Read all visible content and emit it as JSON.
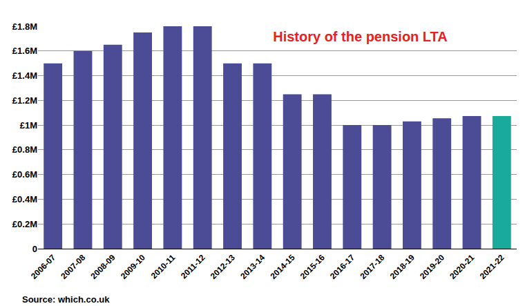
{
  "chart_data": {
    "type": "bar",
    "title": "History of the pension LTA",
    "categories": [
      "2006-07",
      "2007-08",
      "2008-09",
      "2009-10",
      "2010-11",
      "2011-12",
      "2012-13",
      "2013-14",
      "2014-15",
      "2015-16",
      "2016-17",
      "2017-18",
      "2018-19",
      "2019-20",
      "2020-21",
      "2021-22"
    ],
    "values": [
      1.5,
      1.6,
      1.65,
      1.75,
      1.8,
      1.8,
      1.5,
      1.5,
      1.25,
      1.25,
      1.0,
      1.0,
      1.03,
      1.055,
      1.073,
      1.073
    ],
    "colors": [
      "#4b4b96",
      "#4b4b96",
      "#4b4b96",
      "#4b4b96",
      "#4b4b96",
      "#4b4b96",
      "#4b4b96",
      "#4b4b96",
      "#4b4b96",
      "#4b4b96",
      "#4b4b96",
      "#4b4b96",
      "#4b4b96",
      "#4b4b96",
      "#4b4b96",
      "#1aaa9b"
    ],
    "ylim": [
      0,
      1.8
    ],
    "yticks": [
      0,
      {
        "value": 0.2,
        "label": "£0.2M"
      },
      {
        "value": 0.4,
        "label": "£0.4M"
      },
      {
        "value": 0.6,
        "label": "£0.6M"
      },
      {
        "value": 0.8,
        "label": "£0.8M"
      },
      {
        "value": 1,
        "label": "£1M"
      },
      {
        "value": 1.2,
        "label": "£1.2M"
      },
      {
        "value": 1.4,
        "label": "£1.4M"
      },
      {
        "value": 1.6,
        "label": "£1.6M"
      },
      {
        "value": 1.8,
        "label": "£1.8M"
      }
    ],
    "grid": true,
    "annotations": [
      "Source: which.co.uk"
    ]
  }
}
